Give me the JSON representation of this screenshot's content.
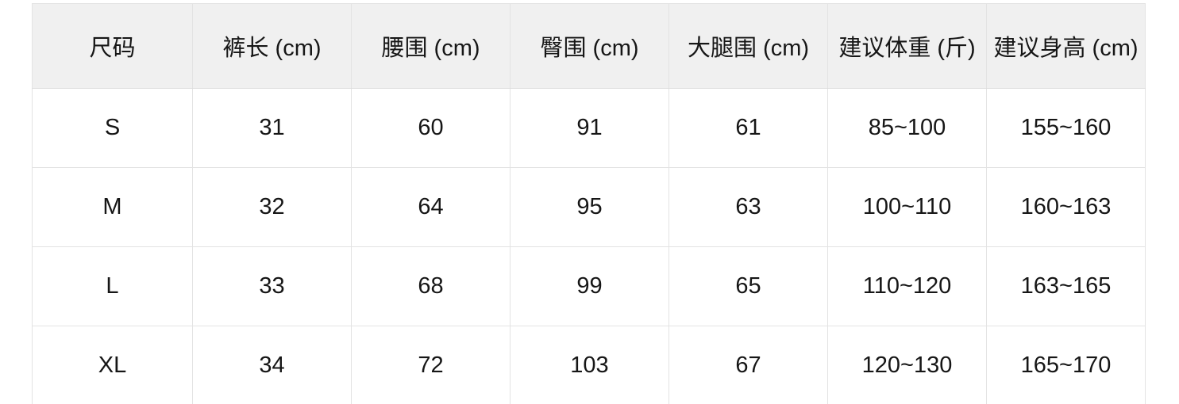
{
  "chart_data": {
    "type": "table",
    "title": "",
    "columns": [
      "尺码",
      "裤长 (cm)",
      "腰围 (cm)",
      "臀围 (cm)",
      "大腿围 (cm)",
      "建议体重 (斤)",
      "建议身高 (cm)"
    ],
    "rows": [
      [
        "S",
        "31",
        "60",
        "91",
        "61",
        "85~100",
        "155~160"
      ],
      [
        "M",
        "32",
        "64",
        "95",
        "63",
        "100~110",
        "160~163"
      ],
      [
        "L",
        "33",
        "68",
        "99",
        "65",
        "110~120",
        "163~165"
      ],
      [
        "XL",
        "34",
        "72",
        "103",
        "67",
        "120~130",
        "165~170"
      ]
    ]
  },
  "table": {
    "headers": [
      "尺码",
      "裤长 (cm)",
      "腰围 (cm)",
      "臀围 (cm)",
      "大腿围 (cm)",
      "建议体重 (斤)",
      "建议身高 (cm)"
    ],
    "rows": [
      [
        "S",
        "31",
        "60",
        "91",
        "61",
        "85~100",
        "155~160"
      ],
      [
        "M",
        "32",
        "64",
        "95",
        "63",
        "100~110",
        "160~163"
      ],
      [
        "L",
        "33",
        "68",
        "99",
        "65",
        "110~120",
        "163~165"
      ],
      [
        "XL",
        "34",
        "72",
        "103",
        "67",
        "120~130",
        "165~170"
      ]
    ]
  },
  "colors": {
    "header_background": "#f0f0f0",
    "grid_border": "#e3e3e3",
    "text": "#161616",
    "page_background": "#ffffff"
  }
}
